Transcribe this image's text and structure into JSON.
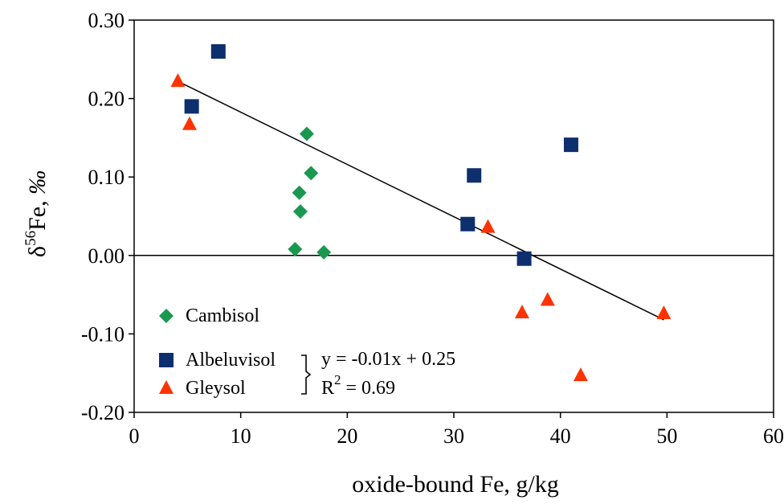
{
  "chart_data": {
    "type": "scatter",
    "title": "",
    "xlabel": "oxide-bound Fe, g/kg",
    "ylabel_parts": {
      "delta": "δ",
      "sup": "56",
      "rest": "Fe, ",
      "unit": "‰"
    },
    "xlim": [
      0,
      60
    ],
    "ylim": [
      -0.2,
      0.3
    ],
    "x_ticks": [
      0,
      10,
      20,
      30,
      40,
      50,
      60
    ],
    "x_tick_labels": [
      "0",
      "10",
      "20",
      "30",
      "40",
      "50",
      "60"
    ],
    "y_ticks": [
      0.3,
      0.2,
      0.1,
      0.0,
      -0.1,
      -0.2
    ],
    "y_tick_labels": [
      "0.30",
      "0.20",
      "0.10",
      "0.00",
      "-0.10",
      "-0.20"
    ],
    "grid": false,
    "zero_line": true,
    "legend_position": "bottom-left",
    "series": [
      {
        "name": "Cambisol",
        "marker": "diamond",
        "color": "#1a9850",
        "points": [
          {
            "x": 16.2,
            "y": 0.155
          },
          {
            "x": 16.6,
            "y": 0.105
          },
          {
            "x": 15.5,
            "y": 0.08
          },
          {
            "x": 15.6,
            "y": 0.056
          },
          {
            "x": 15.1,
            "y": 0.008
          },
          {
            "x": 17.8,
            "y": 0.004
          }
        ]
      },
      {
        "name": "Albeluvisol",
        "marker": "square",
        "color": "#0d2f6e",
        "points": [
          {
            "x": 7.9,
            "y": 0.26
          },
          {
            "x": 5.4,
            "y": 0.19
          },
          {
            "x": 31.9,
            "y": 0.102
          },
          {
            "x": 31.3,
            "y": 0.04
          },
          {
            "x": 36.6,
            "y": -0.004
          },
          {
            "x": 41.0,
            "y": 0.141
          }
        ]
      },
      {
        "name": "Gleysol",
        "marker": "triangle",
        "color": "#ff3300",
        "points": [
          {
            "x": 4.1,
            "y": 0.222
          },
          {
            "x": 5.2,
            "y": 0.167
          },
          {
            "x": 33.2,
            "y": 0.036
          },
          {
            "x": 36.4,
            "y": -0.073
          },
          {
            "x": 38.8,
            "y": -0.057
          },
          {
            "x": 41.9,
            "y": -0.153
          },
          {
            "x": 49.7,
            "y": -0.074
          }
        ]
      }
    ],
    "trendline": {
      "x": [
        4.1,
        49.7
      ],
      "y": [
        0.222,
        -0.082
      ],
      "equation": "y = -0.01x + 0.25",
      "r2_label": "R",
      "r2_sup": "2",
      "r2_value": " = 0.69"
    }
  }
}
